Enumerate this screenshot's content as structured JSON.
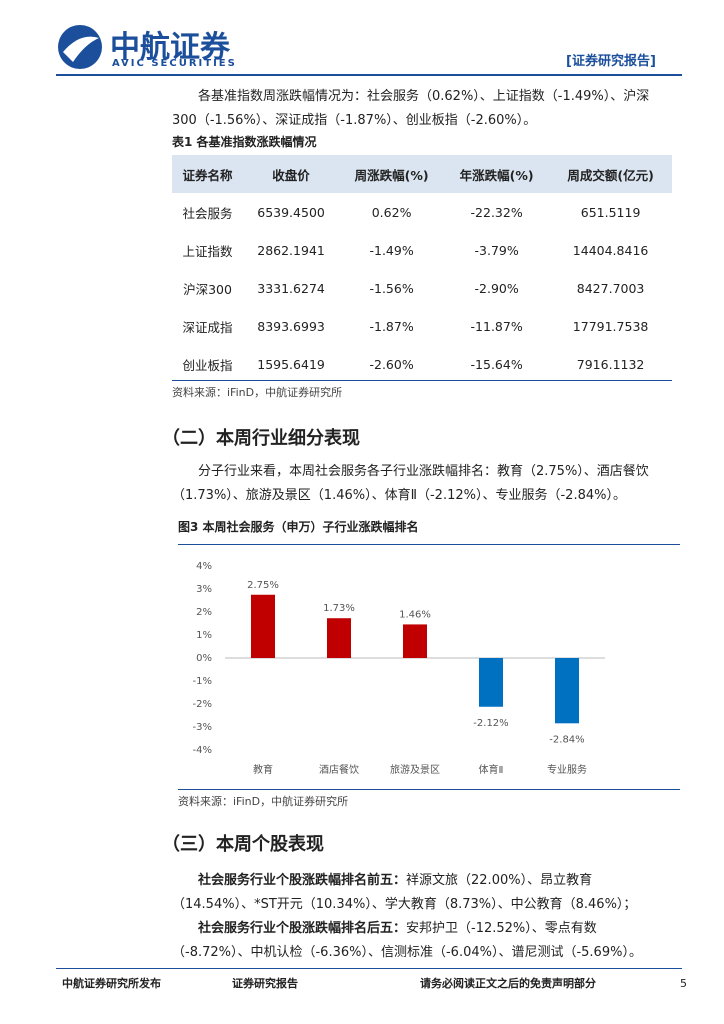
{
  "header": {
    "logo": "中航证券",
    "logo_sub": "AVIC SECURITIES",
    "tag": "[证券研究报告]"
  },
  "paragraph1": "各基准指数周涨跌幅情况为：社会服务（0.62%）、上证指数（-1.49%）、沪深300（-1.56%）、深证成指（-1.87%）、创业板指（-2.60%）。",
  "table": {
    "caption": "表1  各基准指数涨跌幅情况",
    "header": [
      "证券名称",
      "收盘价",
      "周涨跌幅(%)",
      "年涨跌幅(%)",
      "周成交额(亿元)"
    ],
    "rows": [
      [
        "社会服务",
        "6539.4500",
        "0.62%",
        "-22.32%",
        "651.5119"
      ],
      [
        "上证指数",
        "2862.1941",
        "-1.49%",
        "-3.79%",
        "14404.8416"
      ],
      [
        "沪深300",
        "3331.6274",
        "-1.56%",
        "-2.90%",
        "8427.7003"
      ],
      [
        "深证成指",
        "8393.6993",
        "-1.87%",
        "-11.87%",
        "17791.7538"
      ],
      [
        "创业板指",
        "1595.6419",
        "-2.60%",
        "-15.64%",
        "7916.1132"
      ]
    ],
    "source": "资料来源：iFinD，中航证券研究所"
  },
  "section2": {
    "heading": "（二）本周行业细分表现",
    "paragraph": "分子行业来看，本周社会服务各子行业涨跌幅排名：教育（2.75%）、酒店餐饮（1.73%）、旅游及景区（1.46%）、体育Ⅱ（-2.12%）、专业服务（-2.84%）。"
  },
  "chart_data": {
    "type": "bar",
    "title": "图3  本周社会服务（申万）子行业涨跌幅排名",
    "categories": [
      "教育",
      "酒店餐饮",
      "旅游及景区",
      "体育Ⅱ",
      "专业服务"
    ],
    "values": [
      2.75,
      1.73,
      1.46,
      -2.12,
      -2.84
    ],
    "value_labels": [
      "2.75%",
      "1.73%",
      "1.46%",
      "-2.12%",
      "-2.84%"
    ],
    "colors": [
      "#c00000",
      "#c00000",
      "#c00000",
      "#0070c0",
      "#0070c0"
    ],
    "ylim": [
      -4,
      4
    ],
    "yticks": [
      {
        "value": -4,
        "label": "-4%"
      },
      {
        "value": -3,
        "label": "-3%"
      },
      {
        "value": -2,
        "label": "-2%"
      },
      {
        "value": -1,
        "label": "-1%"
      },
      {
        "value": 0,
        "label": "0%"
      },
      {
        "value": 1,
        "label": "1%"
      },
      {
        "value": 2,
        "label": "2%"
      },
      {
        "value": 3,
        "label": "3%"
      },
      {
        "value": 4,
        "label": "4%"
      }
    ],
    "source": "资料来源：iFinD，中航证券研究所"
  },
  "section3": {
    "heading": "（三）本周个股表现",
    "top_lead": "社会服务行业个股涨跌幅排名前五：",
    "top_text": "祥源文旅（22.00%）、昂立教育（14.54%）、*ST开元（10.34%）、学大教育（8.73%）、中公教育（8.46%）；",
    "bottom_lead": "社会服务行业个股涨跌幅排名后五：",
    "bottom_text": "安邦护卫（-12.52%）、零点有数（-8.72%）、中机认检（-6.36%）、信测标准（-6.04%）、谱尼测试（-5.69%）。"
  },
  "footer": {
    "left": "中航证券研究所发布",
    "middle": "证券研究报告",
    "right": "请务必阅读正文之后的免责声明部分",
    "page": "5"
  }
}
